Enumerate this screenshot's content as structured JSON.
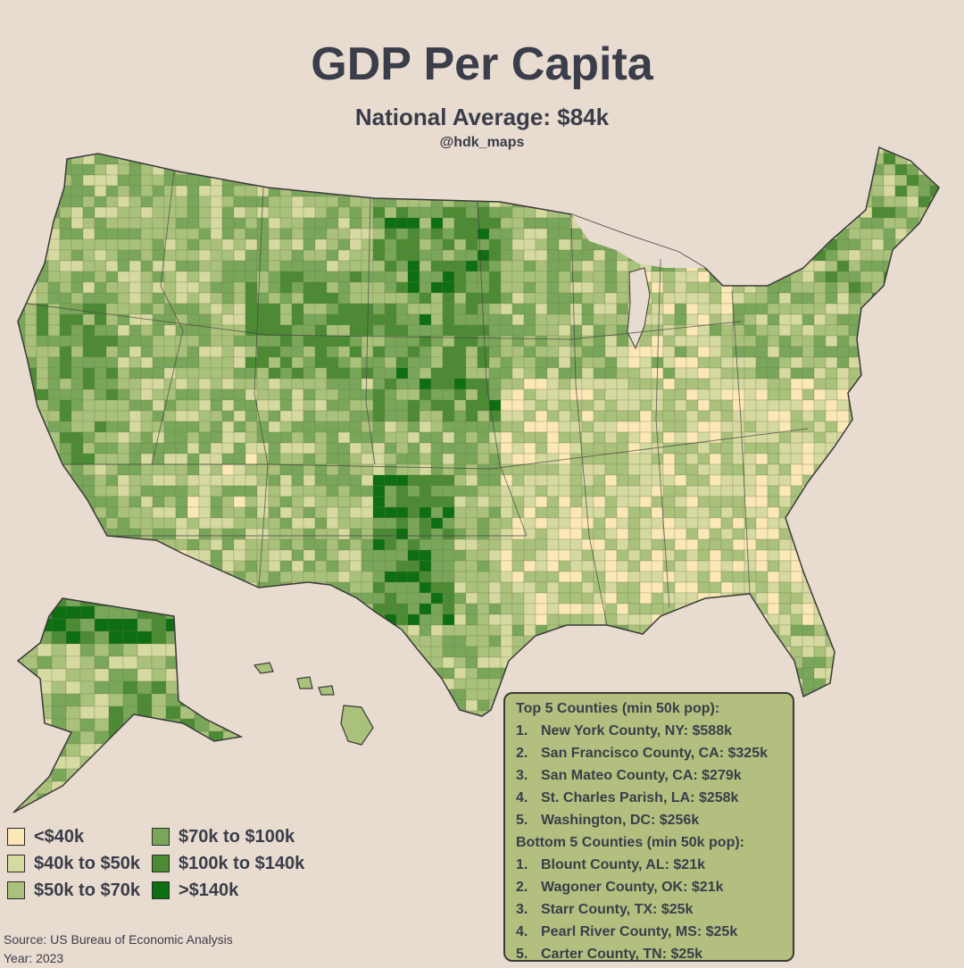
{
  "header": {
    "title": "GDP Per Capita",
    "subtitle": "National Average: $84k",
    "handle": "@hdk_maps"
  },
  "map": {
    "colors": {
      "background": "#e8dbcf",
      "lt40": "#fbe8b6",
      "40to50": "#d6d9a0",
      "50to70": "#a9c17a",
      "70to100": "#79a659",
      "100to140": "#4d8a34",
      "gt140": "#0d6e12",
      "border": "#3a3a3a"
    }
  },
  "legend": {
    "items": [
      {
        "label": "<$40k",
        "color": "#fbe8b6"
      },
      {
        "label": "$70k to $100k",
        "color": "#79a659"
      },
      {
        "label": "$40k to $50k",
        "color": "#d6d9a0"
      },
      {
        "label": "$100k to $140k",
        "color": "#4d8a34"
      },
      {
        "label": "$50k to $70k",
        "color": "#a9c17a"
      },
      {
        "label": ">$140k",
        "color": "#0d6e12"
      }
    ]
  },
  "rankings": {
    "top_heading": "Top 5 Counties (min 50k pop):",
    "top": [
      {
        "rank": "1.",
        "text": "New York County, NY: $588k"
      },
      {
        "rank": "2.",
        "text": "San Francisco County, CA: $325k"
      },
      {
        "rank": "3.",
        "text": "San Mateo County, CA: $279k"
      },
      {
        "rank": "4.",
        "text": "St. Charles Parish, LA: $258k"
      },
      {
        "rank": "5.",
        "text": "Washington, DC: $256k"
      }
    ],
    "bottom_heading": "Bottom 5 Counties (min 50k pop):",
    "bottom": [
      {
        "rank": "1.",
        "text": "Blount County, AL: $21k"
      },
      {
        "rank": "2.",
        "text": "Wagoner County, OK: $21k"
      },
      {
        "rank": "3.",
        "text": "Starr County, TX: $25k"
      },
      {
        "rank": "4.",
        "text": "Pearl River County, MS: $25k"
      },
      {
        "rank": "5.",
        "text": "Carter County, TN: $25k"
      }
    ]
  },
  "footer": {
    "source": "Source: US Bureau of Economic Analysis",
    "year": "Year: 2023"
  }
}
